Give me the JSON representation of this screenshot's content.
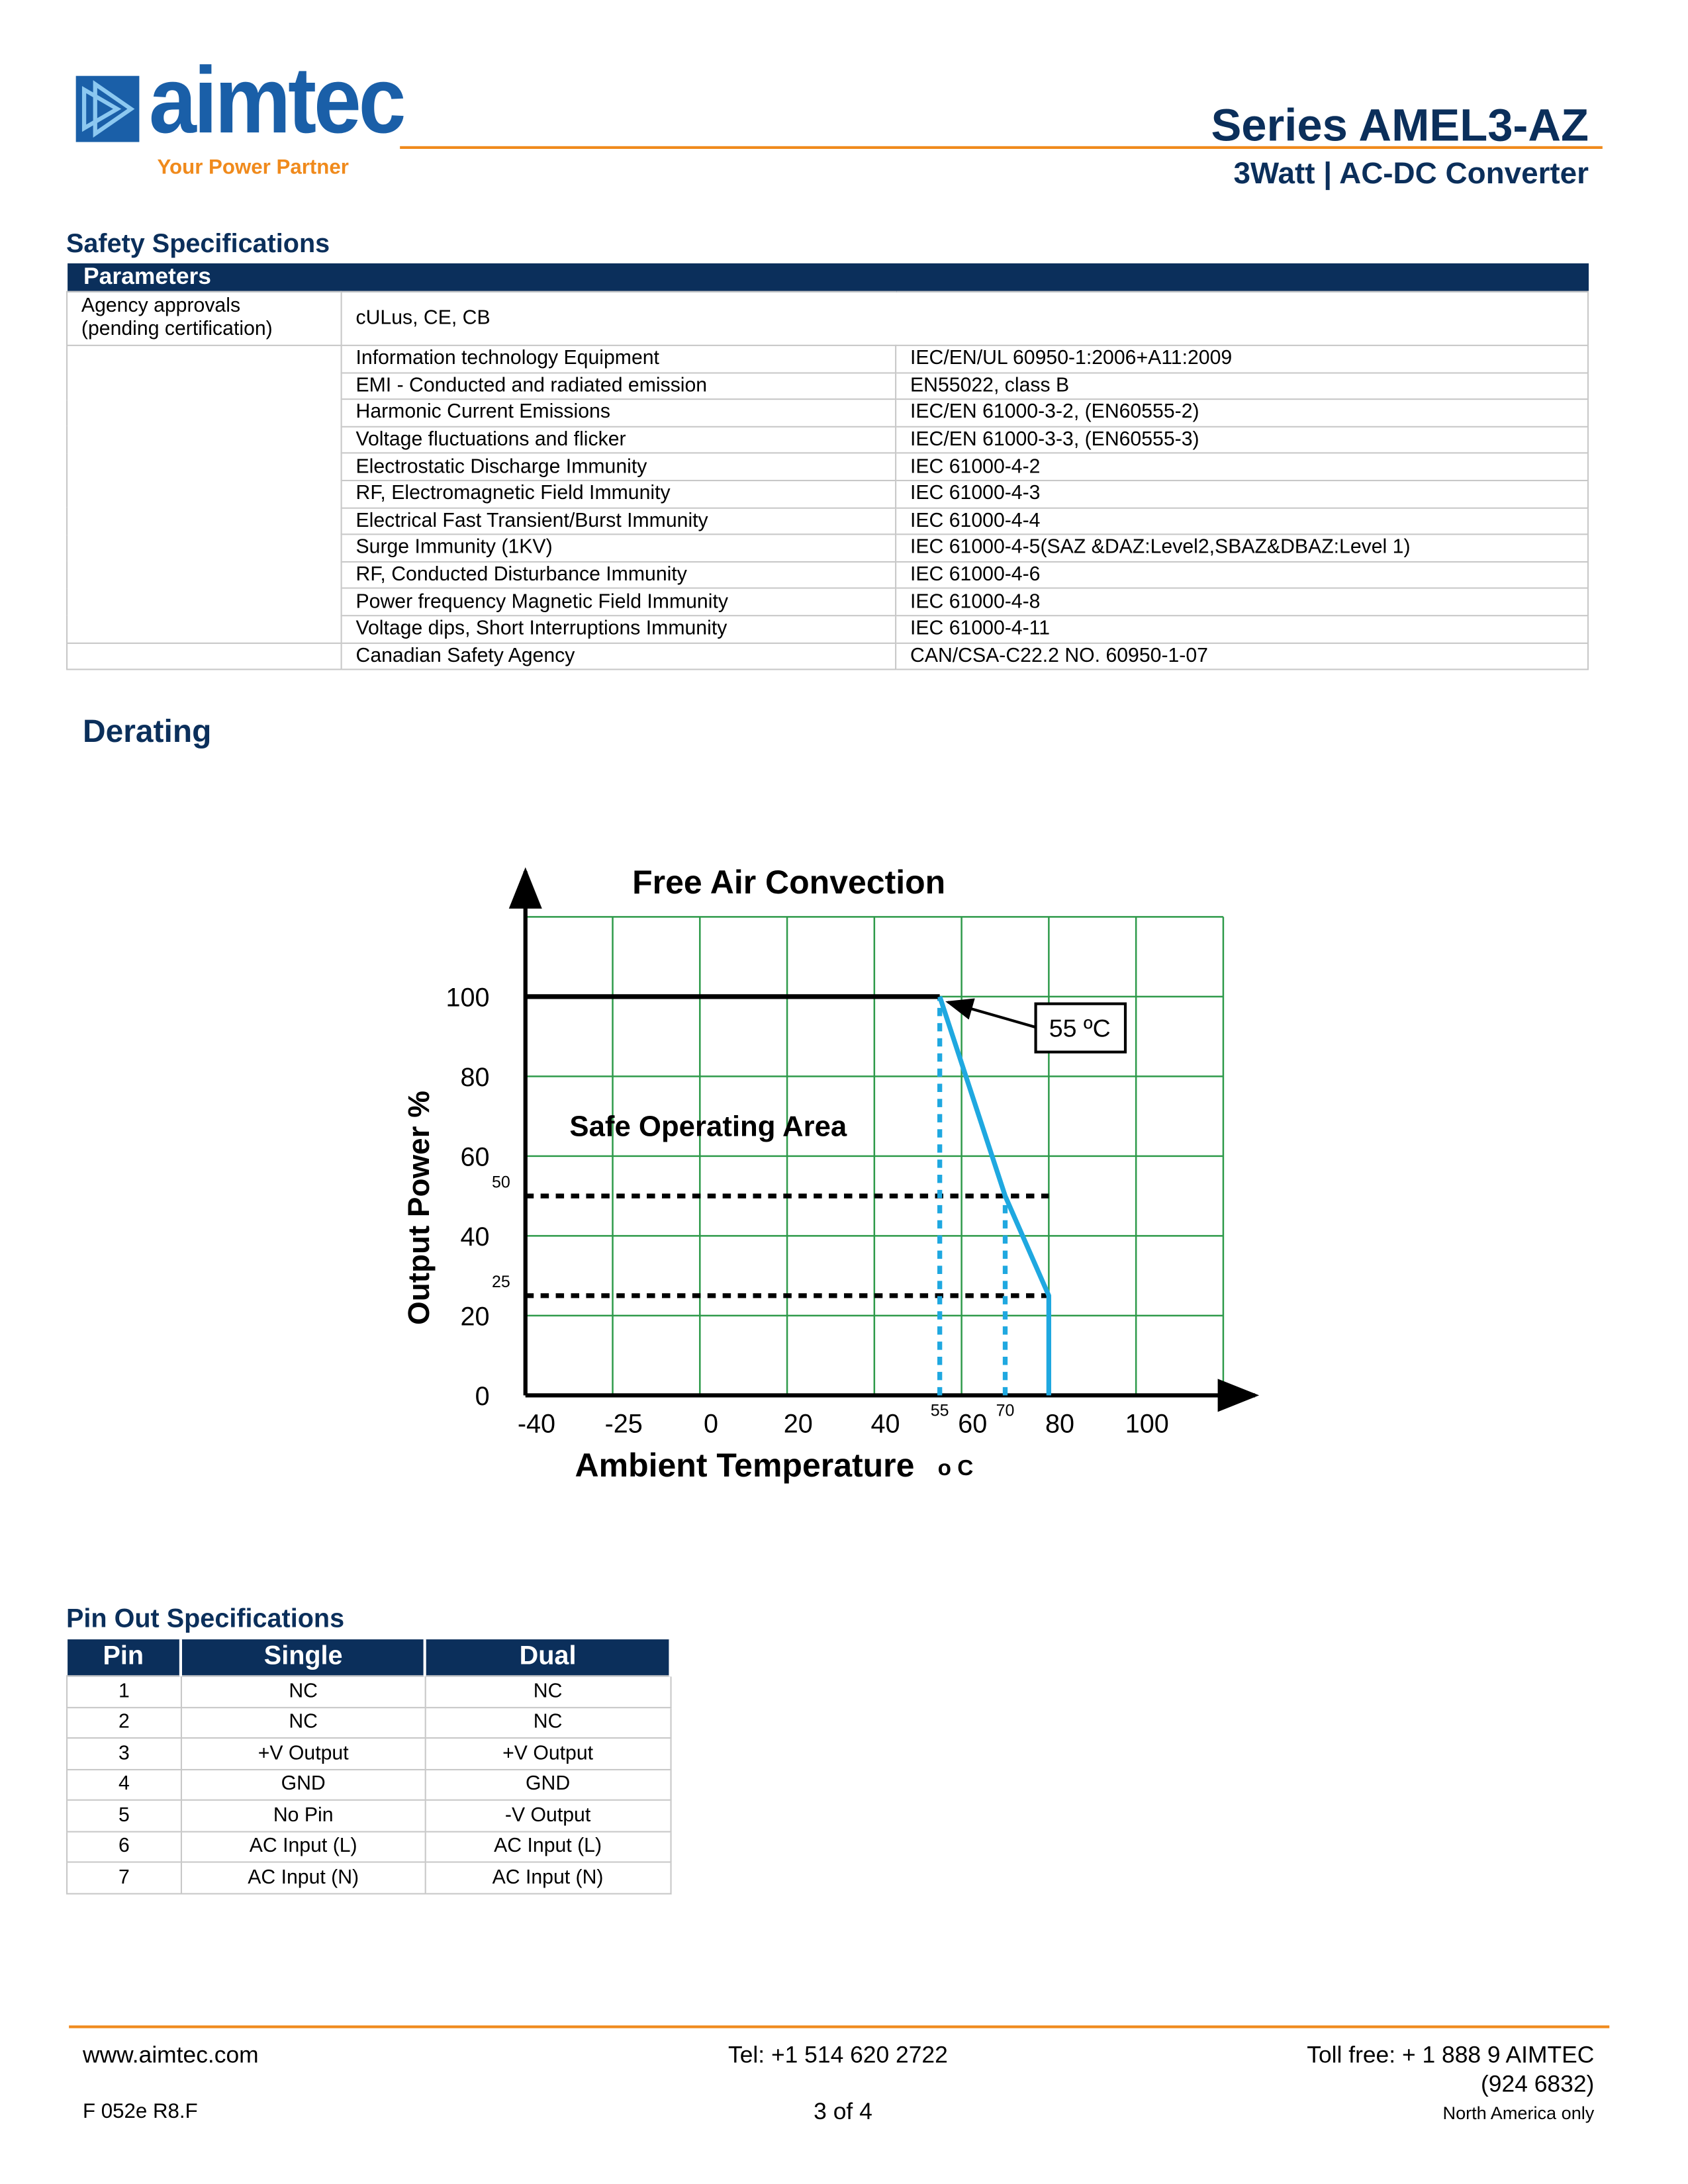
{
  "header": {
    "logo_text": "aimtec",
    "tagline": "Your Power Partner",
    "series": "Series AMEL3-AZ",
    "subtitle": "3Watt | AC-DC Converter"
  },
  "safety": {
    "title": "Safety Specifications",
    "header": "Parameters",
    "approvals": [
      "Agency approvals\n(pending certification)",
      "cULus, CE, CB"
    ],
    "rows": [
      [
        "Information technology Equipment",
        "IEC/EN/UL 60950-1:2006+A11:2009"
      ],
      [
        "EMI - Conducted and radiated emission",
        "EN55022, class B"
      ],
      [
        "Harmonic Current Emissions",
        "IEC/EN 61000-3-2, (EN60555-2)"
      ],
      [
        "Voltage fluctuations and flicker",
        "IEC/EN 61000-3-3, (EN60555-3)"
      ],
      [
        "Electrostatic Discharge Immunity",
        "IEC 61000-4-2"
      ],
      [
        "RF, Electromagnetic Field Immunity",
        "IEC 61000-4-3"
      ],
      [
        "Electrical Fast Transient/Burst Immunity",
        "IEC 61000-4-4"
      ],
      [
        "Surge Immunity (1KV)",
        "IEC 61000-4-5(SAZ &DAZ:Level2,SBAZ&DBAZ:Level 1)"
      ],
      [
        "RF, Conducted Disturbance Immunity",
        "IEC 61000-4-6"
      ],
      [
        "Power frequency Magnetic Field Immunity",
        "IEC 61000-4-8"
      ],
      [
        "Voltage dips, Short Interruptions Immunity",
        "IEC 61000-4-11"
      ],
      [
        "Canadian Safety Agency",
        "CAN/CSA-C22.2 NO. 60950-1-07"
      ]
    ]
  },
  "derating": {
    "title": "Derating"
  },
  "chart_data": {
    "type": "line",
    "title": "Free Air Convection",
    "x_label": "Ambient Temperature",
    "x_unit": "o C",
    "y_label": "Output Power %",
    "xlim": [
      -40,
      120
    ],
    "xticks": [
      -40,
      -25,
      0,
      20,
      40,
      60,
      80,
      100
    ],
    "ylim": [
      0,
      120
    ],
    "yticks": [
      0,
      20,
      40,
      60,
      80,
      100
    ],
    "grid": true,
    "grid_color": "#2e9a4a",
    "series": [
      {
        "color": "#000000",
        "x": [
          -40,
          55
        ],
        "values": [
          100,
          100
        ]
      },
      {
        "color": "#1fa8e0",
        "x": [
          55,
          70,
          80,
          80
        ],
        "values": [
          100,
          50,
          25,
          0
        ]
      }
    ],
    "hlines": [
      50,
      25
    ],
    "vlines": [
      55,
      70
    ],
    "annotations": [
      "55 ºC",
      "Safe Operating Area"
    ]
  },
  "pinout": {
    "title": "Pin Out Specifications",
    "columns": [
      "Pin",
      "Single",
      "Dual"
    ],
    "rows": [
      [
        "1",
        "NC",
        "NC"
      ],
      [
        "2",
        "NC",
        "NC"
      ],
      [
        "3",
        "+V Output",
        "+V Output"
      ],
      [
        "4",
        "GND",
        "GND"
      ],
      [
        "5",
        "No Pin",
        "-V Output"
      ],
      [
        "6",
        "AC Input  (L)",
        "AC Input  (L)"
      ],
      [
        "7",
        "AC Input (N)",
        "AC Input (N)"
      ]
    ]
  },
  "footer": {
    "website": "www.aimtec.com",
    "tel": "Tel: +1 514 620 2722",
    "tollfree": "Toll free: + 1 888 9 AIMTEC",
    "tollfree2": "(924 6832)",
    "code": "F 052e R8.F",
    "page": "3 of 4",
    "region": "North America only"
  }
}
